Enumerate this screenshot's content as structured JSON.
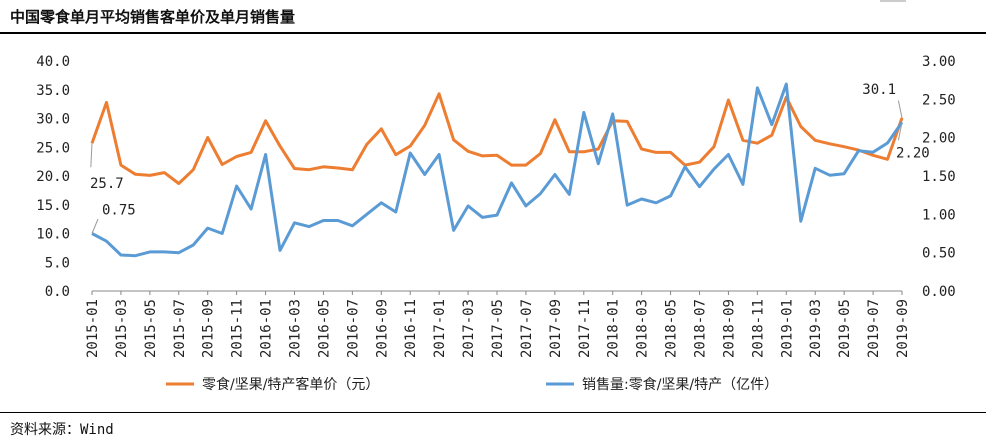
{
  "header": {
    "title": "中国零食单月平均销售客单价及单月销售量"
  },
  "footer": {
    "source": "资料来源：Wind"
  },
  "chart_data": {
    "type": "line",
    "x": [
      "2015-01",
      "2015-02",
      "2015-03",
      "2015-04",
      "2015-05",
      "2015-06",
      "2015-07",
      "2015-08",
      "2015-09",
      "2015-10",
      "2015-11",
      "2015-12",
      "2016-01",
      "2016-02",
      "2016-03",
      "2016-04",
      "2016-05",
      "2016-06",
      "2016-07",
      "2016-08",
      "2016-09",
      "2016-10",
      "2016-11",
      "2016-12",
      "2017-01",
      "2017-02",
      "2017-03",
      "2017-04",
      "2017-05",
      "2017-06",
      "2017-07",
      "2017-08",
      "2017-09",
      "2017-10",
      "2017-11",
      "2017-12",
      "2018-01",
      "2018-02",
      "2018-03",
      "2018-04",
      "2018-05",
      "2018-06",
      "2018-07",
      "2018-08",
      "2018-09",
      "2018-10",
      "2018-11",
      "2018-12",
      "2019-01",
      "2019-02",
      "2019-03",
      "2019-04",
      "2019-05",
      "2019-06",
      "2019-07",
      "2019-08",
      "2019-09"
    ],
    "x_tick_labels": [
      "2015-01",
      "2015-03",
      "2015-05",
      "2015-07",
      "2015-09",
      "2015-11",
      "2016-01",
      "2016-03",
      "2016-05",
      "2016-07",
      "2016-09",
      "2016-11",
      "2017-01",
      "2017-03",
      "2017-05",
      "2017-07",
      "2017-09",
      "2017-11",
      "2018-01",
      "2018-03",
      "2018-05",
      "2018-07",
      "2018-09",
      "2018-11",
      "2019-01",
      "2019-03",
      "2019-05",
      "2019-07",
      "2019-09"
    ],
    "y_left": {
      "ylim": [
        0,
        40
      ],
      "ticks": [
        "0.0",
        "5.0",
        "10.0",
        "15.0",
        "20.0",
        "25.0",
        "30.0",
        "35.0",
        "40.0"
      ]
    },
    "y_right": {
      "ylim": [
        0,
        3
      ],
      "ticks": [
        "0.00",
        "0.50",
        "1.00",
        "1.50",
        "2.00",
        "2.50",
        "3.00"
      ]
    },
    "series": [
      {
        "name": "零食/坚果/特产客单价（元）",
        "axis": "left",
        "color": "#ED7D31",
        "values": [
          25.7,
          32.8,
          21.9,
          20.3,
          20.1,
          20.6,
          18.7,
          21.1,
          26.7,
          22.0,
          23.4,
          24.1,
          29.6,
          25.2,
          21.3,
          21.1,
          21.6,
          21.4,
          21.1,
          25.5,
          28.2,
          23.7,
          25.2,
          28.8,
          34.3,
          26.3,
          24.3,
          23.5,
          23.6,
          21.9,
          21.9,
          23.9,
          29.8,
          24.2,
          24.2,
          24.7,
          29.6,
          29.5,
          24.7,
          24.1,
          24.1,
          21.9,
          22.4,
          25.1,
          33.2,
          26.2,
          25.7,
          27.1,
          33.7,
          28.6,
          26.2,
          25.6,
          25.1,
          24.5,
          23.6,
          22.9,
          30.1
        ]
      },
      {
        "name": "销售量:零食/坚果/特产（亿件）",
        "axis": "right",
        "color": "#5B9BD5",
        "values": [
          0.75,
          0.65,
          0.47,
          0.46,
          0.51,
          0.51,
          0.5,
          0.6,
          0.82,
          0.75,
          1.37,
          1.07,
          1.78,
          0.53,
          0.89,
          0.84,
          0.92,
          0.92,
          0.85,
          1.0,
          1.15,
          1.03,
          1.8,
          1.52,
          1.78,
          0.79,
          1.11,
          0.96,
          0.99,
          1.41,
          1.11,
          1.27,
          1.52,
          1.26,
          2.33,
          1.66,
          2.31,
          1.12,
          1.2,
          1.15,
          1.24,
          1.62,
          1.36,
          1.59,
          1.78,
          1.39,
          2.65,
          2.17,
          2.7,
          0.91,
          1.6,
          1.51,
          1.53,
          1.83,
          1.81,
          1.93,
          2.2
        ]
      }
    ],
    "annotations": [
      {
        "text": "25.7",
        "series": 0,
        "index": 0
      },
      {
        "text": "0.75",
        "series": 1,
        "index": 0
      },
      {
        "text": "30.1",
        "series": 0,
        "index": 56
      },
      {
        "text": "2.20",
        "series": 1,
        "index": 56
      }
    ],
    "legend": {
      "placement": "bottom",
      "items": [
        "零食/坚果/特产客单价（元）",
        "销售量:零食/坚果/特产（亿件）"
      ]
    }
  }
}
